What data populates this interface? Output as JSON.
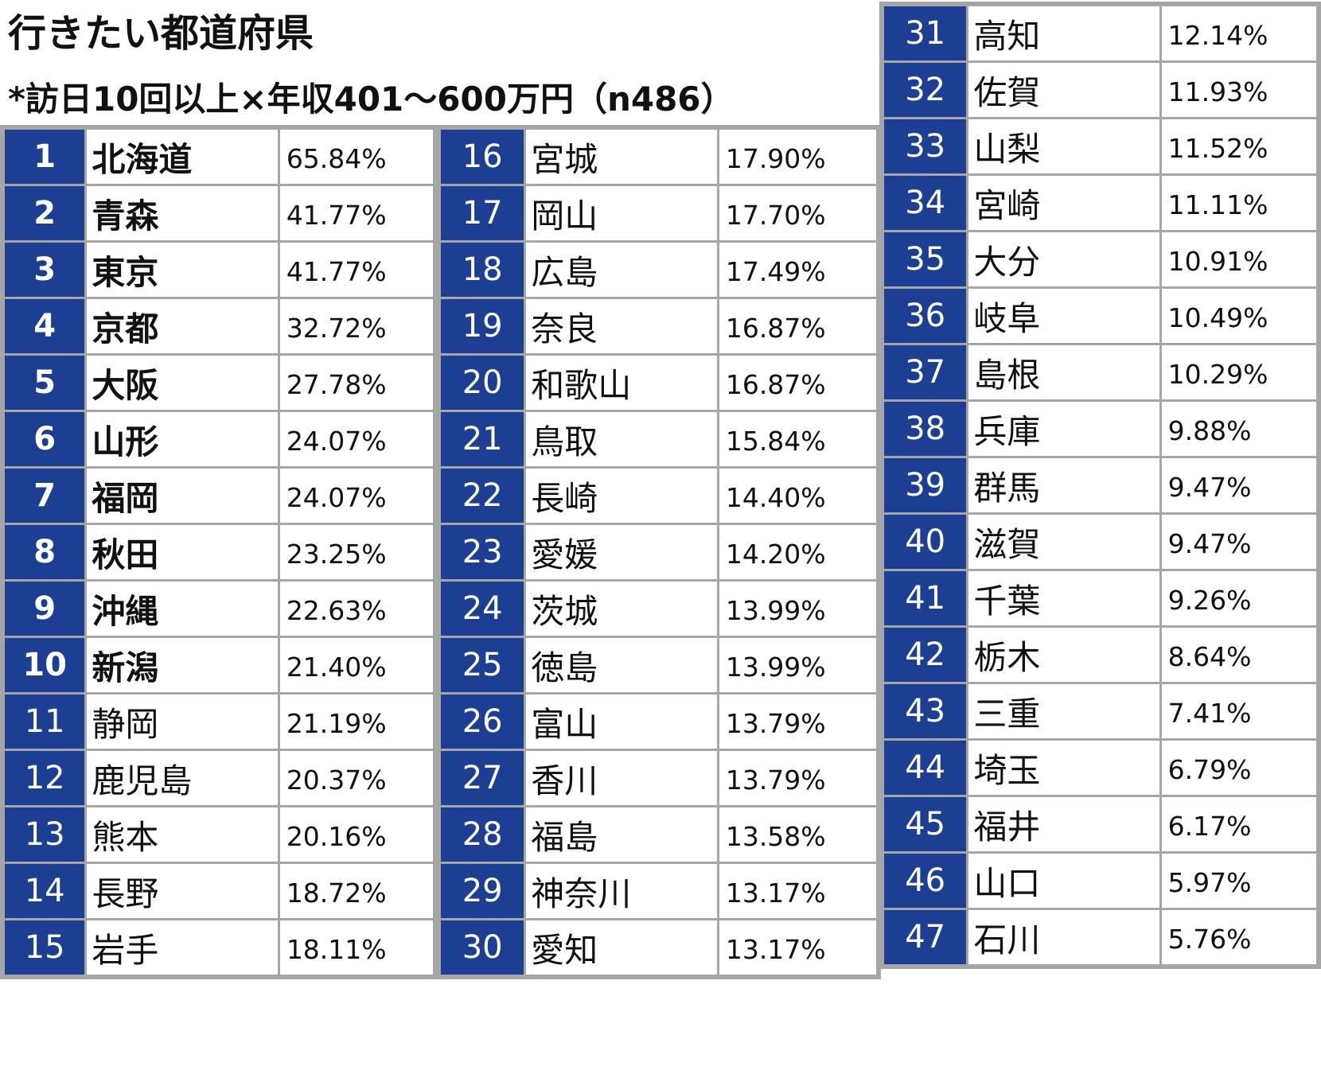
{
  "title": "行きたい都道府県",
  "subtitle": "*訪日10回以上×年収401～600万円（n486）",
  "rankings": [
    {
      "rank": "1",
      "name": "北海道",
      "pct": "65.84%"
    },
    {
      "rank": "2",
      "name": "青森",
      "pct": "41.77%"
    },
    {
      "rank": "3",
      "name": "東京",
      "pct": "41.77%"
    },
    {
      "rank": "4",
      "name": "京都",
      "pct": "32.72%"
    },
    {
      "rank": "5",
      "name": "大阪",
      "pct": "27.78%"
    },
    {
      "rank": "6",
      "name": "山形",
      "pct": "24.07%"
    },
    {
      "rank": "7",
      "name": "福岡",
      "pct": "24.07%"
    },
    {
      "rank": "8",
      "name": "秋田",
      "pct": "23.25%"
    },
    {
      "rank": "9",
      "name": "沖縄",
      "pct": "22.63%"
    },
    {
      "rank": "10",
      "name": "新潟",
      "pct": "21.40%"
    },
    {
      "rank": "11",
      "name": "静岡",
      "pct": "21.19%"
    },
    {
      "rank": "12",
      "name": "鹿児島",
      "pct": "20.37%"
    },
    {
      "rank": "13",
      "name": "熊本",
      "pct": "20.16%"
    },
    {
      "rank": "14",
      "name": "長野",
      "pct": "18.72%"
    },
    {
      "rank": "15",
      "name": "岩手",
      "pct": "18.11%"
    },
    {
      "rank": "16",
      "name": "宮城",
      "pct": "17.90%"
    },
    {
      "rank": "17",
      "name": "岡山",
      "pct": "17.70%"
    },
    {
      "rank": "18",
      "name": "広島",
      "pct": "17.49%"
    },
    {
      "rank": "19",
      "name": "奈良",
      "pct": "16.87%"
    },
    {
      "rank": "20",
      "name": "和歌山",
      "pct": "16.87%"
    },
    {
      "rank": "21",
      "name": "鳥取",
      "pct": "15.84%"
    },
    {
      "rank": "22",
      "name": "長崎",
      "pct": "14.40%"
    },
    {
      "rank": "23",
      "name": "愛媛",
      "pct": "14.20%"
    },
    {
      "rank": "24",
      "name": "茨城",
      "pct": "13.99%"
    },
    {
      "rank": "25",
      "name": "徳島",
      "pct": "13.99%"
    },
    {
      "rank": "26",
      "name": "富山",
      "pct": "13.79%"
    },
    {
      "rank": "27",
      "name": "香川",
      "pct": "13.79%"
    },
    {
      "rank": "28",
      "name": "福島",
      "pct": "13.58%"
    },
    {
      "rank": "29",
      "name": "神奈川",
      "pct": "13.17%"
    },
    {
      "rank": "30",
      "name": "愛知",
      "pct": "13.17%"
    },
    {
      "rank": "31",
      "name": "高知",
      "pct": "12.14%"
    },
    {
      "rank": "32",
      "name": "佐賀",
      "pct": "11.93%"
    },
    {
      "rank": "33",
      "name": "山梨",
      "pct": "11.52%"
    },
    {
      "rank": "34",
      "name": "宮崎",
      "pct": "11.11%"
    },
    {
      "rank": "35",
      "name": "大分",
      "pct": "10.91%"
    },
    {
      "rank": "36",
      "name": "岐阜",
      "pct": "10.49%"
    },
    {
      "rank": "37",
      "name": "島根",
      "pct": "10.29%"
    },
    {
      "rank": "38",
      "name": "兵庫",
      "pct": "9.88%"
    },
    {
      "rank": "39",
      "name": "群馬",
      "pct": "9.47%"
    },
    {
      "rank": "40",
      "name": "滋賀",
      "pct": "9.47%"
    },
    {
      "rank": "41",
      "name": "千葉",
      "pct": "9.26%"
    },
    {
      "rank": "42",
      "name": "栃木",
      "pct": "8.64%"
    },
    {
      "rank": "43",
      "name": "三重",
      "pct": "7.41%"
    },
    {
      "rank": "44",
      "name": "埼玉",
      "pct": "6.79%"
    },
    {
      "rank": "45",
      "name": "福井",
      "pct": "6.17%"
    },
    {
      "rank": "46",
      "name": "山口",
      "pct": "5.97%"
    },
    {
      "rank": "47",
      "name": "石川",
      "pct": "5.76%"
    }
  ],
  "colors": {
    "rank_bg": "#1c3f93",
    "rank_text": "#ffffff",
    "border": "#a6a6a6",
    "cell_bg": "#ffffff"
  }
}
